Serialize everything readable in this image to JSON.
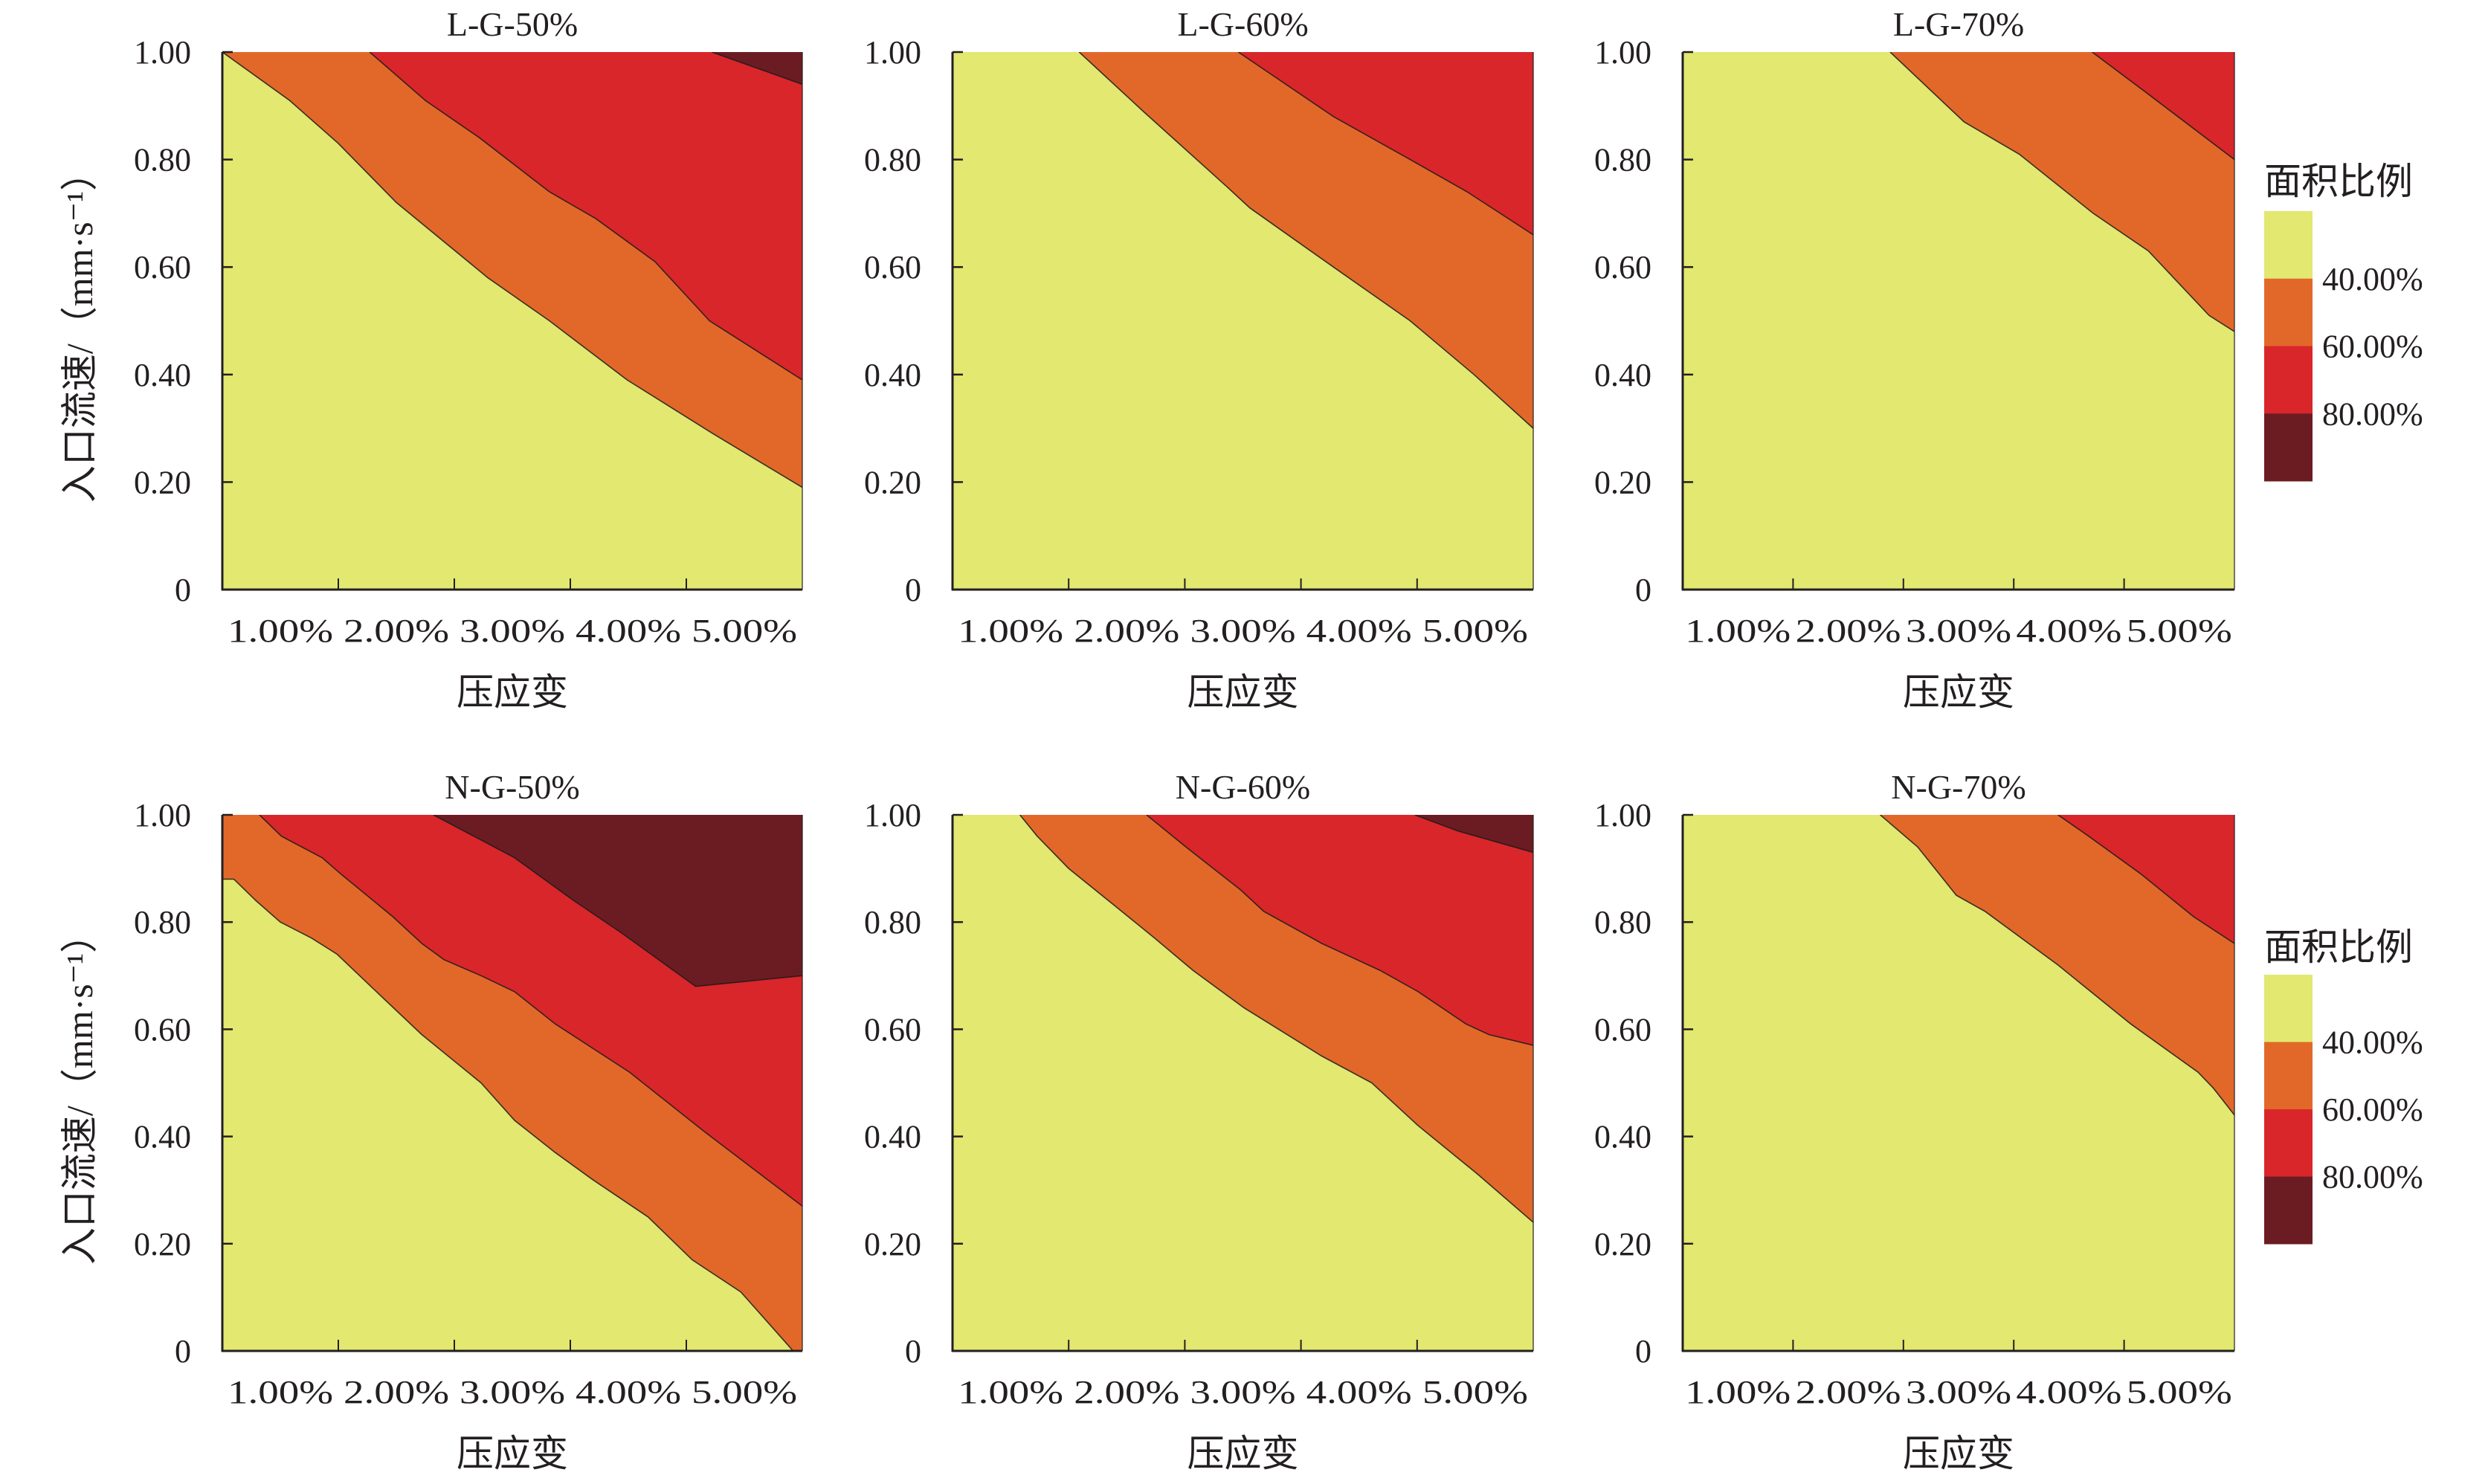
{
  "figure": {
    "colors": {
      "level_0": "#E2E870",
      "level_40": "#E2682A",
      "level_60": "#D8262B",
      "level_80": "#6B1C22",
      "boundary_line": "#1a1a1a",
      "axis": "#231f20"
    }
  },
  "chart_data": [
    {
      "type": "contour",
      "title": "L-G-50%",
      "xlabel": "压应变",
      "ylabel": "入口流速/（mm·s⁻¹）",
      "xticklabels": [
        "1.00%",
        "2.00%",
        "3.00%",
        "4.00%",
        "5.00%"
      ],
      "xtick_values": [
        1,
        2,
        3,
        4,
        5
      ],
      "yticklabels": [
        "0",
        "0.20",
        "0.40",
        "0.60",
        "0.80",
        "1.00"
      ],
      "ytick_values": [
        0,
        0.2,
        0.4,
        0.6,
        0.8,
        1.0
      ],
      "xlim": [
        0.5,
        5.5
      ],
      "ylim": [
        0,
        1
      ],
      "levels": [
        40,
        60,
        80
      ],
      "boundaries": [
        {
          "level": 40,
          "x": [
            0.5,
            1.08,
            1.5,
            2.0,
            2.79,
            3.32,
            3.99,
            4.73,
            5.5
          ],
          "y": [
            1.0,
            0.91,
            0.83,
            0.72,
            0.58,
            0.5,
            0.39,
            0.29,
            0.19
          ]
        },
        {
          "level": 60,
          "x": [
            1.77,
            2.25,
            2.72,
            3.32,
            3.72,
            4.23,
            4.7,
            5.5
          ],
          "y": [
            1.0,
            0.91,
            0.84,
            0.74,
            0.69,
            0.61,
            0.5,
            0.39
          ]
        },
        {
          "level": 80,
          "x": [
            4.72,
            5.5
          ],
          "y": [
            1.0,
            0.94
          ]
        }
      ]
    },
    {
      "type": "contour",
      "title": "L-G-60%",
      "xlabel": "压应变",
      "ylabel": "",
      "xticklabels": [
        "1.00%",
        "2.00%",
        "3.00%",
        "4.00%",
        "5.00%"
      ],
      "xtick_values": [
        1,
        2,
        3,
        4,
        5
      ],
      "yticklabels": [
        "0",
        "0.20",
        "0.40",
        "0.60",
        "0.80",
        "1.00"
      ],
      "ytick_values": [
        0,
        0.2,
        0.4,
        0.6,
        0.8,
        1.0
      ],
      "xlim": [
        0.5,
        5.5
      ],
      "ylim": [
        0,
        1
      ],
      "levels": [
        40,
        60,
        80
      ],
      "boundaries": [
        {
          "level": 40,
          "x": [
            1.59,
            2.14,
            2.86,
            3.06,
            3.78,
            4.44,
            4.99,
            5.5
          ],
          "y": [
            1.0,
            0.89,
            0.75,
            0.71,
            0.6,
            0.5,
            0.4,
            0.3
          ]
        },
        {
          "level": 60,
          "x": [
            2.96,
            3.78,
            4.44,
            4.93,
            5.5
          ],
          "y": [
            1.0,
            0.88,
            0.8,
            0.74,
            0.66
          ]
        }
      ]
    },
    {
      "type": "contour",
      "title": "L-G-70%",
      "xlabel": "压应变",
      "ylabel": "",
      "xticklabels": [
        "1.00%",
        "2.00%",
        "3.00%",
        "4.00%",
        "5.00%"
      ],
      "xtick_values": [
        1,
        2,
        3,
        4,
        5
      ],
      "yticklabels": [
        "0",
        "0.20",
        "0.40",
        "0.60",
        "0.80",
        "1.00"
      ],
      "ytick_values": [
        0,
        0.2,
        0.4,
        0.6,
        0.8,
        1.0
      ],
      "xlim": [
        0.5,
        5.5
      ],
      "ylim": [
        0,
        1
      ],
      "levels": [
        40,
        60,
        80
      ],
      "boundaries": [
        {
          "level": 40,
          "x": [
            2.38,
            3.05,
            3.55,
            4.22,
            4.72,
            5.27,
            5.5
          ],
          "y": [
            1.0,
            0.87,
            0.81,
            0.7,
            0.63,
            0.51,
            0.48
          ]
        },
        {
          "level": 60,
          "x": [
            4.21,
            4.73,
            5.5
          ],
          "y": [
            1.0,
            0.92,
            0.8
          ]
        }
      ],
      "legend": {
        "title": "面积比例",
        "labels": [
          "40.00%",
          "60.00%",
          "80.00%"
        ],
        "placement": "right"
      }
    },
    {
      "type": "contour",
      "title": "N-G-50%",
      "xlabel": "压应变",
      "ylabel": "入口流速/（mm·s⁻¹）",
      "xticklabels": [
        "1.00%",
        "2.00%",
        "3.00%",
        "4.00%",
        "5.00%"
      ],
      "xtick_values": [
        1,
        2,
        3,
        4,
        5
      ],
      "yticklabels": [
        "0",
        "0.20",
        "0.40",
        "0.60",
        "0.80",
        "1.00"
      ],
      "ytick_values": [
        0,
        0.2,
        0.4,
        0.6,
        0.8,
        1.0
      ],
      "xlim": [
        0.5,
        5.5
      ],
      "ylim": [
        0,
        1
      ],
      "levels": [
        40,
        60,
        80
      ],
      "boundaries": [
        {
          "level": 40,
          "x": [
            0.5,
            0.6,
            0.79,
            1.0,
            1.27,
            1.49,
            1.78,
            2.22,
            2.73,
            3.02,
            3.37,
            3.69,
            4.17,
            4.55,
            4.97,
            5.38,
            5.42
          ],
          "y": [
            0.88,
            0.88,
            0.84,
            0.8,
            0.77,
            0.74,
            0.68,
            0.59,
            0.5,
            0.43,
            0.37,
            0.32,
            0.25,
            0.17,
            0.11,
            0.01,
            0.0
          ]
        },
        {
          "level": 60,
          "x": [
            0.82,
            1.01,
            1.36,
            1.52,
            1.97,
            2.22,
            2.41,
            2.73,
            3.02,
            3.37,
            4.01,
            4.65,
            5.5
          ],
          "y": [
            1.0,
            0.96,
            0.92,
            0.89,
            0.81,
            0.76,
            0.73,
            0.7,
            0.67,
            0.61,
            0.52,
            0.41,
            0.27
          ]
        },
        {
          "level": 80,
          "x": [
            2.32,
            3.02,
            3.53,
            3.94,
            4.58,
            5.5
          ],
          "y": [
            1.0,
            0.92,
            0.84,
            0.78,
            0.68,
            0.7
          ]
        }
      ]
    },
    {
      "type": "contour",
      "title": "N-G-60%",
      "xlabel": "压应变",
      "ylabel": "",
      "xticklabels": [
        "1.00%",
        "2.00%",
        "3.00%",
        "4.00%",
        "5.00%"
      ],
      "xtick_values": [
        1,
        2,
        3,
        4,
        5
      ],
      "yticklabels": [
        "0",
        "0.20",
        "0.40",
        "0.60",
        "0.80",
        "1.00"
      ],
      "ytick_values": [
        0,
        0.2,
        0.4,
        0.6,
        0.8,
        1.0
      ],
      "xlim": [
        0.5,
        5.5
      ],
      "ylim": [
        0,
        1
      ],
      "levels": [
        40,
        60,
        80
      ],
      "boundaries": [
        {
          "level": 40,
          "x": [
            1.08,
            1.23,
            1.5,
            1.9,
            2.24,
            2.57,
            3.01,
            3.68,
            4.11,
            4.51,
            5.02,
            5.5
          ],
          "y": [
            1.0,
            0.96,
            0.9,
            0.83,
            0.77,
            0.71,
            0.64,
            0.55,
            0.5,
            0.42,
            0.33,
            0.24
          ]
        },
        {
          "level": 60,
          "x": [
            2.17,
            2.51,
            2.98,
            3.18,
            3.68,
            4.18,
            4.51,
            4.92,
            5.12,
            5.5
          ],
          "y": [
            1.0,
            0.94,
            0.86,
            0.82,
            0.76,
            0.71,
            0.67,
            0.61,
            0.59,
            0.57
          ]
        },
        {
          "level": 80,
          "x": [
            4.48,
            4.85,
            5.5
          ],
          "y": [
            1.0,
            0.97,
            0.93
          ]
        }
      ]
    },
    {
      "type": "contour",
      "title": "N-G-70%",
      "xlabel": "压应变",
      "ylabel": "",
      "xticklabels": [
        "1.00%",
        "2.00%",
        "3.00%",
        "4.00%",
        "5.00%"
      ],
      "xtick_values": [
        1,
        2,
        3,
        4,
        5
      ],
      "yticklabels": [
        "0",
        "0.20",
        "0.40",
        "0.60",
        "0.80",
        "1.00"
      ],
      "ytick_values": [
        0,
        0.2,
        0.4,
        0.6,
        0.8,
        1.0
      ],
      "xlim": [
        0.5,
        5.5
      ],
      "ylim": [
        0,
        1
      ],
      "levels": [
        40,
        60,
        80
      ],
      "boundaries": [
        {
          "level": 40,
          "x": [
            2.29,
            2.63,
            2.98,
            3.24,
            3.9,
            4.56,
            5.17,
            5.31,
            5.5
          ],
          "y": [
            1.0,
            0.94,
            0.85,
            0.82,
            0.72,
            0.61,
            0.52,
            0.49,
            0.44
          ]
        },
        {
          "level": 60,
          "x": [
            3.9,
            4.18,
            4.65,
            5.13,
            5.5
          ],
          "y": [
            1.0,
            0.96,
            0.89,
            0.81,
            0.76
          ]
        }
      ],
      "legend": {
        "title": "面积比例",
        "labels": [
          "40.00%",
          "60.00%",
          "80.00%"
        ],
        "placement": "right"
      }
    }
  ]
}
